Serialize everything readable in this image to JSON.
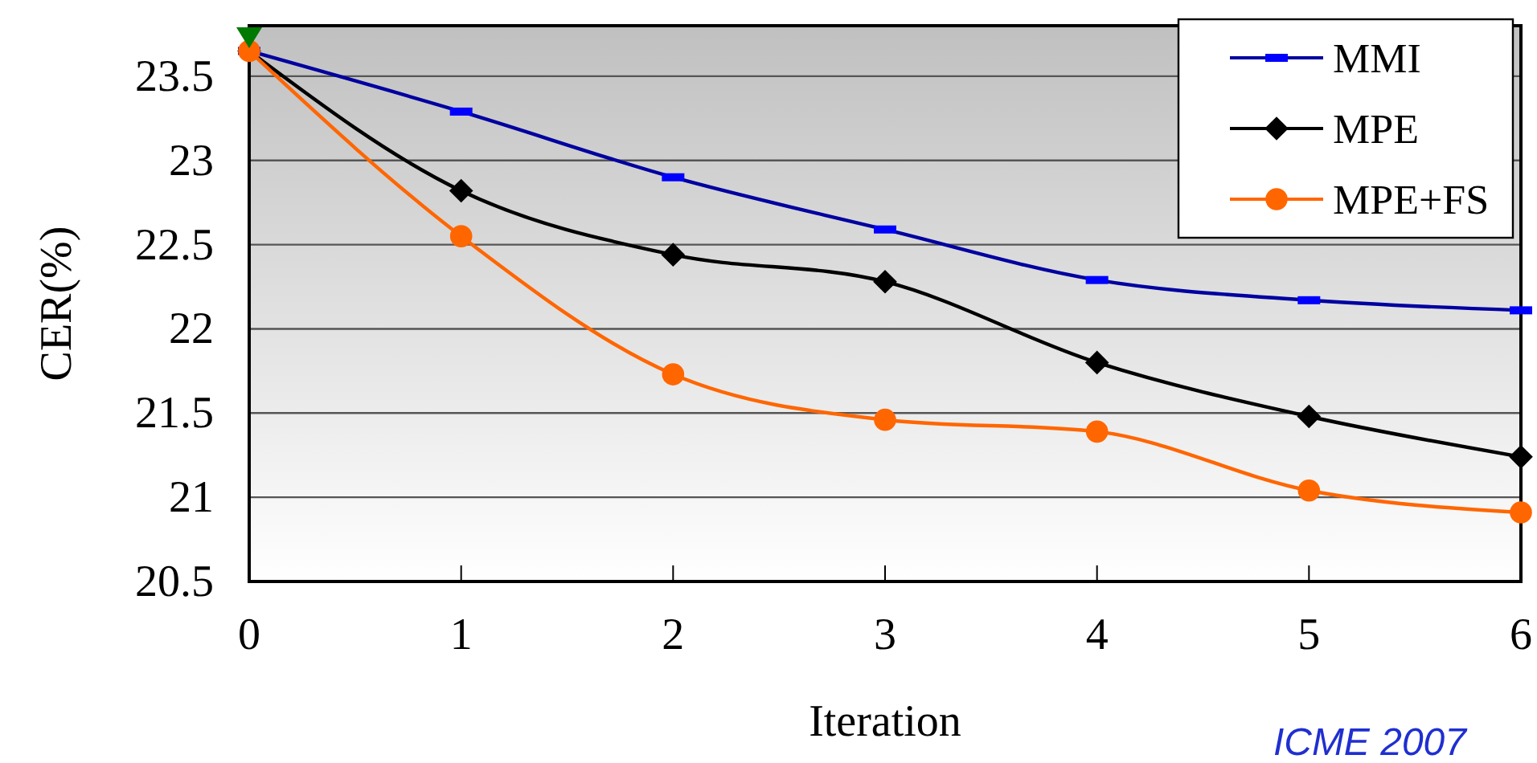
{
  "chart_data": {
    "type": "line",
    "xlabel": "Iteration",
    "ylabel": "CER(%)",
    "x": [
      0,
      1,
      2,
      3,
      4,
      5,
      6
    ],
    "xlim": [
      0,
      6
    ],
    "xticks": [
      0,
      1,
      2,
      3,
      4,
      5,
      6
    ],
    "ylim": [
      20.5,
      23.8
    ],
    "yticks": [
      20.5,
      21,
      21.5,
      22,
      22.5,
      23,
      23.5
    ],
    "grid": "y",
    "legend": "top right",
    "series": [
      {
        "name": "MMI",
        "color": "#0000a0",
        "marker": "square",
        "values": [
          23.65,
          23.29,
          22.9,
          22.59,
          22.29,
          22.17,
          22.11
        ]
      },
      {
        "name": "MPE",
        "color": "#000000",
        "marker": "diamond",
        "values": [
          23.65,
          22.82,
          22.44,
          22.28,
          21.8,
          21.48,
          21.24
        ]
      },
      {
        "name": "MPE+FS",
        "color": "#ff6600",
        "marker": "circle",
        "values": [
          23.65,
          22.55,
          21.73,
          21.46,
          21.39,
          21.04,
          20.91
        ]
      }
    ],
    "annotations": [
      "ICME 2007"
    ]
  }
}
